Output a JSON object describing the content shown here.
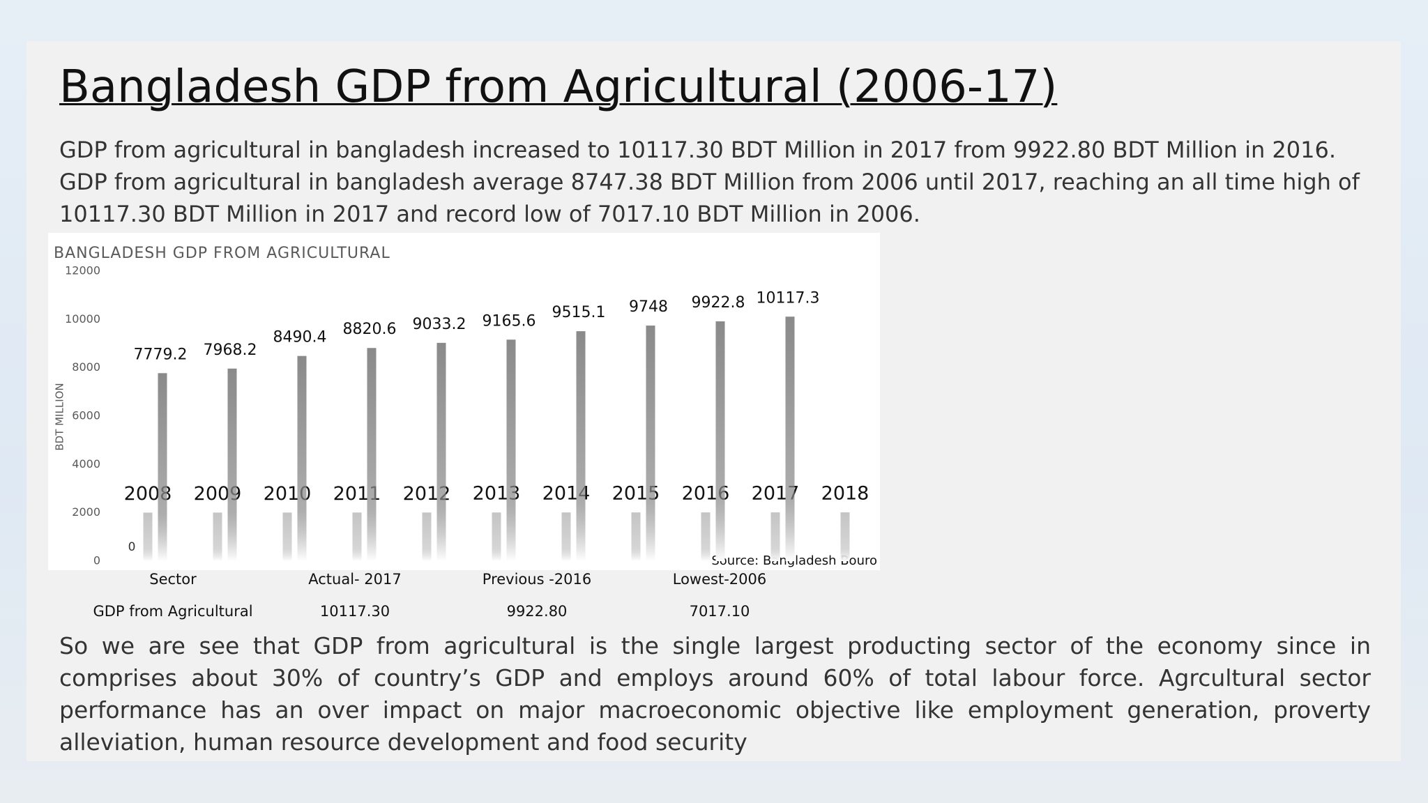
{
  "header": {
    "title": "Bangladesh GDP from Agricultural (2006-17)"
  },
  "intro": [
    "GDP from agricultural in bangladesh increased to 10117.30 BDT Million in 2017 from 9922.80 BDT Million in 2016.",
    "GDP from agricultural in bangladesh average 8747.38 BDT Million from 2006 until 2017, reaching an all time high of 10117.30 BDT Million in 2017 and record low of 7017.10 BDT Million in 2006."
  ],
  "chart_data": {
    "type": "bar",
    "title": "BANGLADESH GDP FROM AGRICULTURAL",
    "y_label": "BDT MILLION",
    "categories": [
      null,
      null,
      null,
      null,
      null,
      null,
      null,
      null,
      null,
      null,
      null
    ],
    "series": [
      {
        "color": "#c4c4c4",
        "values": [
          2008,
          2009,
          2010,
          2011,
          2012,
          2013,
          2014,
          2015,
          2016,
          2017,
          2018
        ]
      },
      {
        "color": "#8a8a8a",
        "values": [
          7779.2,
          7968.2,
          8490.4,
          8820.6,
          9033.2,
          9165.6,
          9515.1,
          9748,
          9922.8,
          10117.3,
          null
        ]
      }
    ],
    "ylim": [
      0,
      12000
    ],
    "yticks": [
      0,
      2000,
      4000,
      6000,
      8000,
      10000,
      12000
    ],
    "annotation": "0",
    "source": "Source: Bangladesh Bouro"
  },
  "table": {
    "header": [
      "Sector",
      "Actual- 2017",
      "Previous -2016",
      "Lowest-2006"
    ],
    "rows": [
      [
        "GDP from Agricultural",
        "10117.30",
        "9922.80",
        "7017.10"
      ]
    ]
  },
  "conclusion": "So we are see that GDP from agricultural is the single largest producting sector of the economy since in comprises about 30% of country’s GDP and employs around 60% of total labour force. Agrcultural sector performance has an over impact on major macroeconomic objective like employment generation, proverty  alleviation, human resource development and food security"
}
